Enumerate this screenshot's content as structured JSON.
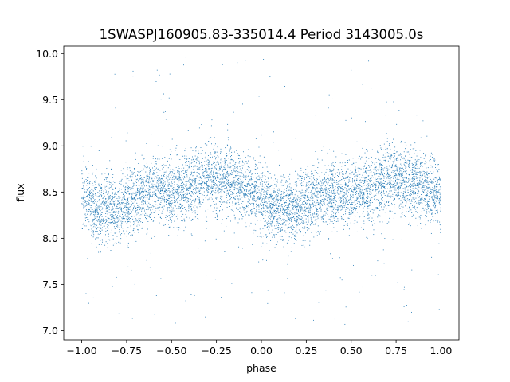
{
  "chart_data": {
    "type": "scatter",
    "title": "1SWASPJ160905.83-335014.4 Period 3143005.0s",
    "xlabel": "phase",
    "ylabel": "flux",
    "xlim": [
      -1.1,
      1.1
    ],
    "ylim": [
      6.9,
      10.08
    ],
    "xticks": [
      -1.0,
      -0.75,
      -0.5,
      -0.25,
      0.0,
      0.25,
      0.5,
      0.75,
      1.0
    ],
    "xtick_labels": [
      "−1.00",
      "−0.75",
      "−0.50",
      "−0.25",
      "0.00",
      "0.25",
      "0.50",
      "0.75",
      "1.00"
    ],
    "yticks": [
      7.0,
      7.5,
      8.0,
      8.5,
      9.0,
      9.5,
      10.0
    ],
    "ytick_labels": [
      "7.0",
      "7.5",
      "8.0",
      "8.5",
      "9.0",
      "9.5",
      "10.0"
    ],
    "grid": false,
    "marker_color": "#1f77b4",
    "series": [
      {
        "phase_profile": {
          "phase": [
            0.0,
            0.1,
            0.2,
            0.3,
            0.4,
            0.5,
            0.6,
            0.7,
            0.8,
            0.9
          ],
          "median_flux": [
            8.45,
            8.3,
            8.32,
            8.42,
            8.5,
            8.5,
            8.55,
            8.65,
            8.65,
            8.55
          ]
        },
        "scatter_sigma": 0.18,
        "outlier_range": [
          7.05,
          9.97
        ],
        "phase_range": [
          -1.0,
          1.0
        ]
      }
    ]
  }
}
